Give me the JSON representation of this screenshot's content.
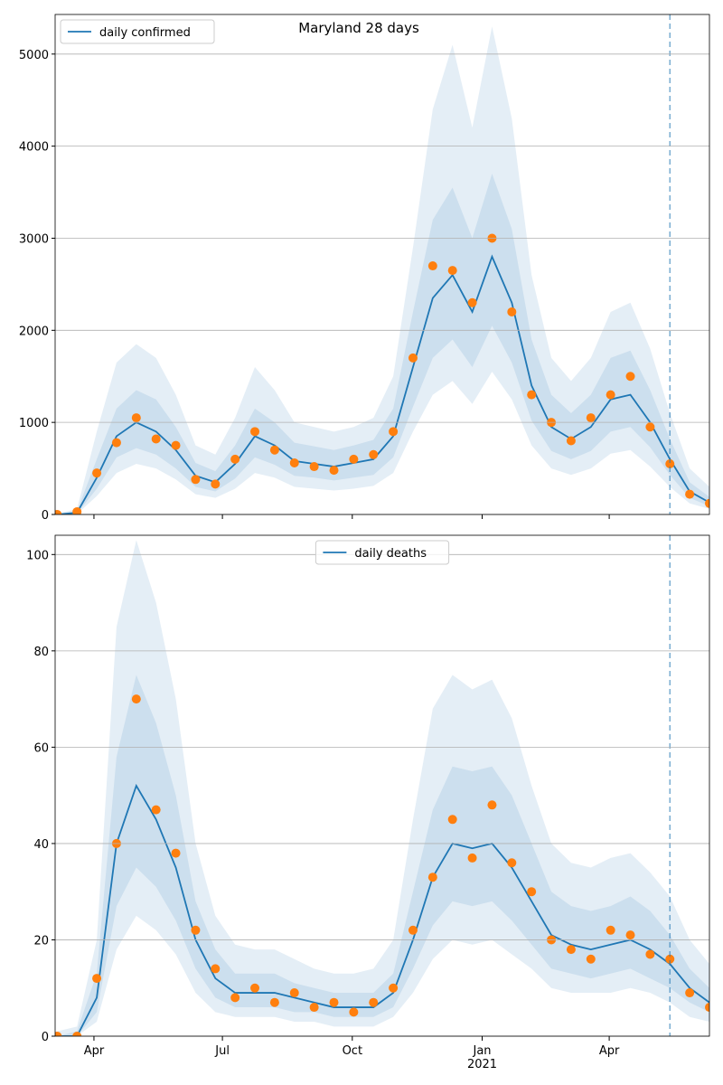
{
  "chart_data": [
    {
      "type": "line",
      "title": "Maryland 28 days",
      "x": [
        5,
        19,
        33,
        47,
        61,
        75,
        89,
        103,
        117,
        131,
        145,
        159,
        173,
        187,
        201,
        215,
        229,
        243,
        257,
        271,
        285,
        299,
        313,
        327,
        341,
        355,
        369,
        383,
        397,
        411,
        425,
        439,
        453,
        467
      ],
      "xlim": [
        3.5,
        467
      ],
      "xticks": [
        31,
        122,
        214,
        306,
        396
      ],
      "xticks_labeled": false,
      "ylim": [
        0,
        5430
      ],
      "yticks": [
        0,
        1000,
        2000,
        3000,
        4000,
        5000
      ],
      "grid": true,
      "legend": "upper left",
      "vline": 439,
      "series": [
        {
          "name": "daily confirmed",
          "color": "#1f77b4",
          "values": [
            0,
            20,
            400,
            850,
            1000,
            900,
            700,
            420,
            350,
            550,
            850,
            750,
            580,
            550,
            520,
            560,
            600,
            850,
            1600,
            2350,
            2600,
            2200,
            2800,
            2300,
            1400,
            950,
            820,
            950,
            1250,
            1300,
            1000,
            600,
            250,
            130
          ]
        }
      ],
      "observed": {
        "color": "#ff7f0e",
        "values": [
          0,
          30,
          450,
          780,
          1050,
          820,
          750,
          380,
          330,
          600,
          900,
          700,
          560,
          520,
          480,
          600,
          650,
          900,
          1700,
          2700,
          2650,
          2300,
          3000,
          2200,
          1300,
          1000,
          800,
          1050,
          1300,
          1500,
          950,
          550,
          220,
          120
        ]
      },
      "bands": [
        {
          "lower": [
            0,
            5,
            200,
            450,
            550,
            500,
            380,
            220,
            180,
            280,
            450,
            400,
            300,
            280,
            260,
            280,
            310,
            450,
            900,
            1300,
            1450,
            1200,
            1550,
            1250,
            750,
            500,
            430,
            500,
            660,
            700,
            520,
            300,
            120,
            60
          ],
          "upper": [
            10,
            60,
            900,
            1650,
            1850,
            1700,
            1300,
            750,
            650,
            1050,
            1600,
            1350,
            1000,
            950,
            900,
            950,
            1050,
            1500,
            2900,
            4400,
            5100,
            4200,
            5300,
            4300,
            2600,
            1700,
            1450,
            1700,
            2200,
            2300,
            1800,
            1100,
            500,
            300
          ]
        },
        {
          "lower": [
            0,
            10,
            280,
            620,
            720,
            650,
            500,
            300,
            250,
            390,
            620,
            540,
            420,
            400,
            370,
            400,
            430,
            620,
            1170,
            1700,
            1900,
            1600,
            2050,
            1650,
            1020,
            690,
            600,
            690,
            900,
            950,
            730,
            430,
            180,
            90
          ],
          "upper": [
            5,
            35,
            600,
            1150,
            1350,
            1250,
            950,
            560,
            470,
            750,
            1150,
            1000,
            780,
            740,
            700,
            750,
            810,
            1150,
            2200,
            3200,
            3550,
            3000,
            3700,
            3100,
            1900,
            1300,
            1100,
            1300,
            1700,
            1780,
            1350,
            820,
            350,
            190
          ]
        }
      ]
    },
    {
      "type": "line",
      "x": [
        5,
        19,
        33,
        47,
        61,
        75,
        89,
        103,
        117,
        131,
        145,
        159,
        173,
        187,
        201,
        215,
        229,
        243,
        257,
        271,
        285,
        299,
        313,
        327,
        341,
        355,
        369,
        383,
        397,
        411,
        425,
        439,
        453,
        467
      ],
      "xlim": [
        3.5,
        467
      ],
      "xticks": [
        {
          "value": 31,
          "label": "Apr"
        },
        {
          "value": 122,
          "label": "Jul"
        },
        {
          "value": 214,
          "label": "Oct"
        },
        {
          "value": 306,
          "label": "Jan\n2021"
        },
        {
          "value": 396,
          "label": "Apr"
        }
      ],
      "ylim": [
        0,
        104
      ],
      "yticks": [
        0,
        20,
        40,
        60,
        80,
        100
      ],
      "grid": true,
      "legend": "upper center",
      "vline": 439,
      "series": [
        {
          "name": "daily deaths",
          "color": "#1f77b4",
          "values": [
            0,
            0,
            8,
            40,
            52,
            45,
            35,
            20,
            12,
            9,
            9,
            9,
            8,
            7,
            6,
            6,
            6,
            9,
            20,
            33,
            40,
            39,
            40,
            35,
            28,
            21,
            19,
            18,
            19,
            20,
            18,
            15,
            10,
            7
          ]
        }
      ],
      "observed": {
        "color": "#ff7f0e",
        "values": [
          0,
          0,
          12,
          40,
          70,
          47,
          38,
          22,
          14,
          8,
          10,
          7,
          9,
          6,
          7,
          5,
          7,
          10,
          22,
          33,
          45,
          37,
          48,
          36,
          30,
          20,
          18,
          16,
          22,
          21,
          17,
          16,
          9,
          6
        ]
      },
      "bands": [
        {
          "lower": [
            0,
            0,
            3,
            18,
            25,
            22,
            17,
            9,
            5,
            4,
            4,
            4,
            3,
            3,
            2,
            2,
            2,
            4,
            9,
            16,
            20,
            19,
            20,
            17,
            14,
            10,
            9,
            9,
            9,
            10,
            9,
            7,
            4,
            3
          ],
          "upper": [
            1,
            2,
            20,
            85,
            103,
            90,
            70,
            40,
            25,
            19,
            18,
            18,
            16,
            14,
            13,
            13,
            14,
            20,
            45,
            68,
            75,
            72,
            74,
            66,
            52,
            40,
            36,
            35,
            37,
            38,
            34,
            29,
            20,
            15
          ]
        },
        {
          "lower": [
            0,
            0,
            5,
            27,
            35,
            31,
            24,
            14,
            8,
            6,
            6,
            6,
            5,
            5,
            4,
            4,
            4,
            6,
            14,
            23,
            28,
            27,
            28,
            24,
            19,
            14,
            13,
            12,
            13,
            14,
            12,
            10,
            7,
            5
          ],
          "upper": [
            0,
            1,
            13,
            58,
            75,
            65,
            50,
            28,
            18,
            13,
            13,
            13,
            11,
            10,
            9,
            9,
            9,
            13,
            30,
            47,
            56,
            55,
            56,
            50,
            40,
            30,
            27,
            26,
            27,
            29,
            26,
            21,
            14,
            10
          ]
        }
      ]
    }
  ]
}
